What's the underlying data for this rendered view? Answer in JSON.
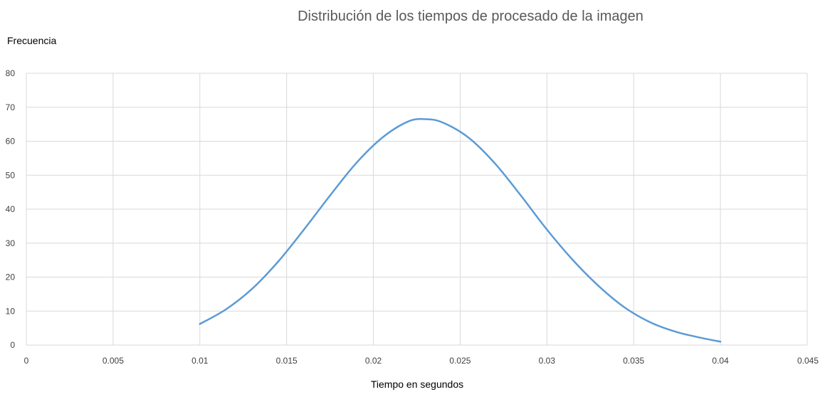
{
  "chart_data": {
    "type": "line",
    "title": "Distribución de los tiempos de procesado de la imagen",
    "ylabel": "Frecuencia",
    "xlabel": "Tiempo en segundos",
    "xlim": [
      0,
      0.045
    ],
    "ylim": [
      0,
      80
    ],
    "x_ticks": [
      "0",
      "0.005",
      "0.01",
      "0.015",
      "0.02",
      "0.025",
      "0.03",
      "0.035",
      "0.04",
      "0.045"
    ],
    "x_tick_values": [
      0,
      0.005,
      0.01,
      0.015,
      0.02,
      0.025,
      0.03,
      0.035,
      0.04,
      0.045
    ],
    "y_ticks": [
      "0",
      "10",
      "20",
      "30",
      "40",
      "50",
      "60",
      "70",
      "80"
    ],
    "y_tick_values": [
      0,
      10,
      20,
      30,
      40,
      50,
      60,
      70,
      80
    ],
    "grid": true,
    "line_color": "#5B9BD5",
    "series": [
      {
        "x": [
          0.01,
          0.0115,
          0.013,
          0.0145,
          0.016,
          0.0175,
          0.019,
          0.0205,
          0.022,
          0.023,
          0.024,
          0.0255,
          0.027,
          0.0285,
          0.03,
          0.0315,
          0.033,
          0.0345,
          0.036,
          0.0375,
          0.039,
          0.04
        ],
        "values": [
          6.2,
          10.5,
          16.5,
          24.5,
          34,
          44,
          53.5,
          61,
          65.8,
          66.5,
          65.5,
          61,
          53.5,
          44,
          34,
          25,
          17.3,
          11,
          6.6,
          3.8,
          2,
          1
        ]
      }
    ]
  }
}
